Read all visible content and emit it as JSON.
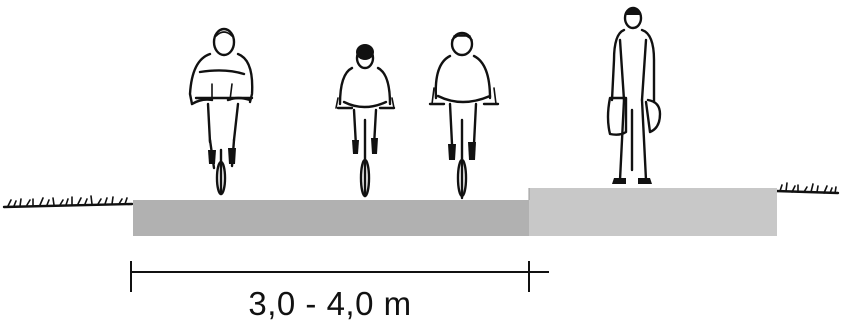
{
  "dimension": {
    "label": "3,0 - 4,0 m"
  },
  "colors": {
    "bike_path": "#b1b1b1",
    "sidewalk": "#c8c8c8",
    "ink": "#111111",
    "background": "#ffffff"
  },
  "figures": {
    "cyclists": 3,
    "pedestrians": 1
  },
  "icons": [
    "cyclist-icon",
    "pedestrian-icon",
    "grass-icon"
  ]
}
